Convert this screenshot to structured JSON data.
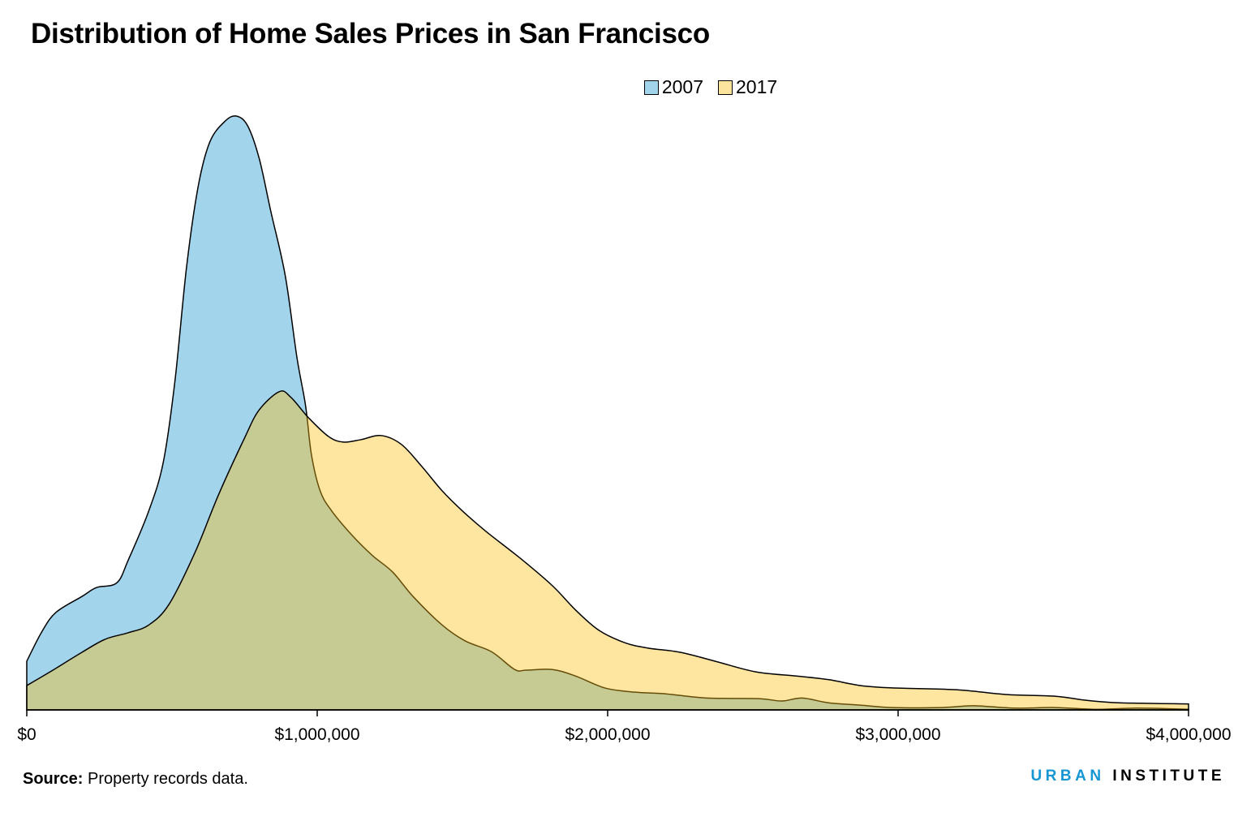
{
  "title": "Distribution of Home Sales Prices in San Francisco",
  "source_label": "Source:",
  "source_text": "Property records data.",
  "logo": {
    "part1": "URBAN",
    "part2": "INSTITUTE",
    "color1": "#1696d2",
    "color2": "#000000"
  },
  "chart_data": {
    "type": "area",
    "title": "Distribution of Home Sales Prices in San Francisco",
    "xlabel": "",
    "ylabel": "",
    "xlim": [
      0,
      4000000
    ],
    "x_ticks": [
      0,
      1000000,
      2000000,
      3000000,
      4000000
    ],
    "x_tick_labels": [
      "$0",
      "$1,000,000",
      "$2,000,000",
      "$3,000,000",
      "$4,000,000"
    ],
    "y_axis": "relative density (unlabeled; 2007 peak = 1)",
    "grid": false,
    "legend_position": "top-center",
    "series": [
      {
        "name": "2007",
        "color": "#a2d4ec",
        "x": [
          0,
          50000,
          100000,
          190000,
          240000,
          310000,
          350000,
          420000,
          470000,
          510000,
          550000,
          590000,
          630000,
          680000,
          720000,
          760000,
          800000,
          840000,
          890000,
          930000,
          960000,
          980000,
          1010000,
          1050000,
          1120000,
          1190000,
          1260000,
          1330000,
          1430000,
          1510000,
          1600000,
          1680000,
          1720000,
          1810000,
          1890000,
          1990000,
          2090000,
          2200000,
          2340000,
          2520000,
          2600000,
          2670000,
          2760000,
          2870000,
          2980000,
          3150000,
          3260000,
          3400000,
          3540000,
          3680000,
          3820000,
          4000000
        ],
        "y": [
          0.082,
          0.13,
          0.164,
          0.191,
          0.206,
          0.214,
          0.253,
          0.335,
          0.417,
          0.553,
          0.745,
          0.881,
          0.956,
          0.99,
          1.0,
          0.984,
          0.929,
          0.84,
          0.731,
          0.594,
          0.512,
          0.43,
          0.369,
          0.335,
          0.294,
          0.26,
          0.232,
          0.191,
          0.143,
          0.116,
          0.098,
          0.068,
          0.067,
          0.068,
          0.057,
          0.037,
          0.03,
          0.027,
          0.02,
          0.019,
          0.015,
          0.02,
          0.012,
          0.008,
          0.004,
          0.004,
          0.007,
          0.003,
          0.004,
          0.001,
          0.003,
          0.001
        ]
      },
      {
        "name": "2017",
        "color": "#fce39e",
        "x": [
          0,
          80000,
          190000,
          270000,
          350000,
          420000,
          490000,
          580000,
          660000,
          750000,
          800000,
          870000,
          910000,
          970000,
          1040000,
          1090000,
          1150000,
          1220000,
          1290000,
          1360000,
          1430000,
          1500000,
          1580000,
          1700000,
          1810000,
          1890000,
          1970000,
          2060000,
          2140000,
          2250000,
          2370000,
          2510000,
          2650000,
          2760000,
          2870000,
          2980000,
          3200000,
          3370000,
          3540000,
          3650000,
          3760000,
          4000000
        ],
        "y": [
          0.041,
          0.064,
          0.097,
          0.119,
          0.13,
          0.143,
          0.178,
          0.266,
          0.362,
          0.458,
          0.505,
          0.536,
          0.526,
          0.492,
          0.46,
          0.451,
          0.455,
          0.462,
          0.447,
          0.41,
          0.369,
          0.335,
          0.301,
          0.255,
          0.209,
          0.168,
          0.134,
          0.113,
          0.104,
          0.097,
          0.082,
          0.064,
          0.057,
          0.051,
          0.041,
          0.037,
          0.034,
          0.026,
          0.023,
          0.016,
          0.012,
          0.01
        ]
      }
    ],
    "overlap_color": "#c5cb95"
  }
}
